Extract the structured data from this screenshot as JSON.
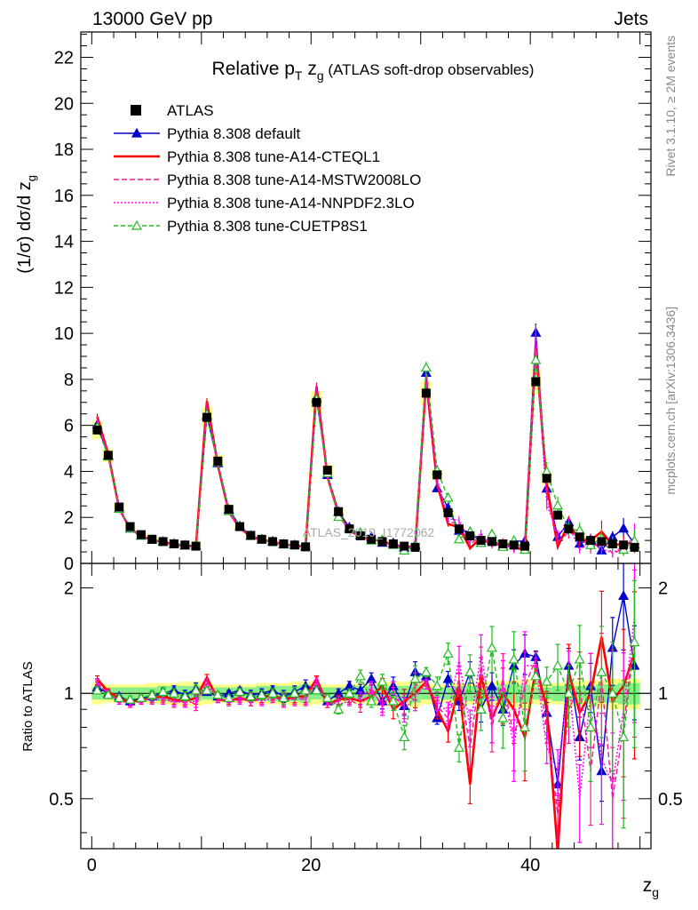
{
  "header": {
    "left": "13000 GeV pp",
    "right": "Jets"
  },
  "side_notes": {
    "rivet": "Rivet 3.1.10, ≥ 2M events",
    "mcplots": "mcplots.cern.ch [arXiv:1306.3436]"
  },
  "watermark": "ATLAS_2019_I1772062",
  "chart_data": {
    "type": "line",
    "title": {
      "main": "Relative p",
      "sub_T": "T",
      "mid": " z",
      "sub_g": "g",
      "rest": " (ATLAS soft-drop observables)"
    },
    "ylabel": "(1/σ) dσ/d z",
    "ylabel_sub": "g",
    "xlabel": "z",
    "xlabel_sub": "g",
    "ratio_ylabel": "Ratio to ATLAS",
    "xlim": [
      -1,
      51
    ],
    "ylim": [
      0,
      23.1
    ],
    "ratio_ylim": [
      0.36,
      2.35
    ],
    "x_ticks": [
      "0",
      "20",
      "40"
    ],
    "y_ticks": [
      "0",
      "2",
      "4",
      "6",
      "8",
      "10",
      "12",
      "14",
      "16",
      "18",
      "20",
      "22"
    ],
    "ratio_ticks": [
      "0.5",
      "1",
      "2"
    ],
    "x": [
      0.5,
      1.5,
      2.5,
      3.5,
      4.5,
      5.5,
      6.5,
      7.5,
      8.5,
      9.5,
      10.5,
      11.5,
      12.5,
      13.5,
      14.5,
      15.5,
      16.5,
      17.5,
      18.5,
      19.5,
      20.5,
      21.5,
      22.5,
      23.5,
      24.5,
      25.5,
      26.5,
      27.5,
      28.5,
      29.5,
      30.5,
      31.5,
      32.5,
      33.5,
      34.5,
      35.5,
      36.5,
      37.5,
      38.5,
      39.5,
      40.5,
      41.5,
      42.5,
      43.5,
      44.5,
      45.5,
      46.5,
      47.5,
      48.5,
      49.5
    ],
    "data": {
      "name": "ATLAS",
      "values": [
        5.8,
        4.7,
        2.45,
        1.6,
        1.25,
        1.05,
        0.95,
        0.85,
        0.8,
        0.75,
        6.35,
        4.45,
        2.35,
        1.6,
        1.22,
        1.05,
        0.95,
        0.85,
        0.8,
        0.72,
        7.0,
        4.05,
        2.25,
        1.5,
        1.2,
        1.05,
        0.95,
        0.85,
        0.75,
        0.7,
        7.4,
        3.85,
        2.2,
        1.5,
        1.2,
        1.0,
        0.95,
        0.85,
        0.8,
        0.75,
        7.9,
        3.7,
        2.1,
        1.5,
        1.15,
        1.0,
        0.95,
        0.85,
        0.8,
        0.7
      ],
      "band_inner": [
        0.04,
        0.04,
        0.04,
        0.04,
        0.04,
        0.04,
        0.05,
        0.05,
        0.05,
        0.05,
        0.04,
        0.04,
        0.04,
        0.04,
        0.04,
        0.05,
        0.05,
        0.05,
        0.05,
        0.06,
        0.04,
        0.04,
        0.04,
        0.04,
        0.05,
        0.05,
        0.05,
        0.05,
        0.05,
        0.06,
        0.04,
        0.04,
        0.04,
        0.05,
        0.05,
        0.05,
        0.05,
        0.06,
        0.06,
        0.06,
        0.04,
        0.04,
        0.05,
        0.05,
        0.05,
        0.05,
        0.06,
        0.06,
        0.07,
        0.07
      ],
      "band_outer": [
        0.07,
        0.06,
        0.06,
        0.06,
        0.06,
        0.07,
        0.07,
        0.07,
        0.08,
        0.08,
        0.07,
        0.06,
        0.06,
        0.06,
        0.06,
        0.07,
        0.07,
        0.07,
        0.08,
        0.08,
        0.07,
        0.06,
        0.06,
        0.06,
        0.07,
        0.07,
        0.08,
        0.08,
        0.08,
        0.09,
        0.07,
        0.06,
        0.06,
        0.07,
        0.07,
        0.08,
        0.08,
        0.09,
        0.09,
        0.1,
        0.07,
        0.07,
        0.07,
        0.08,
        0.08,
        0.09,
        0.09,
        0.1,
        0.1,
        0.1
      ]
    },
    "series": [
      {
        "name": "Pythia 8.308 default",
        "color": "#0000cc",
        "dash": "",
        "marker": "triangle-filled",
        "ratio": [
          1.04,
          1.0,
          0.98,
          0.95,
          0.97,
          0.98,
          1.0,
          1.02,
          0.99,
          1.03,
          1.01,
          0.98,
          1.0,
          1.02,
          0.99,
          1.0,
          1.02,
          0.98,
          1.01,
          1.05,
          1.03,
          0.95,
          1.0,
          1.05,
          1.02,
          1.1,
          0.95,
          1.05,
          0.92,
          1.15,
          1.12,
          0.85,
          1.1,
          0.95,
          1.15,
          0.9,
          1.05,
          0.9,
          1.2,
          1.3,
          1.27,
          0.88,
          0.55,
          1.2,
          0.75,
          1.05,
          0.6,
          1.35,
          1.9,
          1.2
        ],
        "err": [
          0.02,
          0.02,
          0.02,
          0.02,
          0.02,
          0.03,
          0.03,
          0.03,
          0.03,
          0.04,
          0.02,
          0.02,
          0.02,
          0.02,
          0.03,
          0.03,
          0.03,
          0.04,
          0.04,
          0.04,
          0.02,
          0.02,
          0.03,
          0.03,
          0.04,
          0.04,
          0.05,
          0.06,
          0.06,
          0.07,
          0.03,
          0.04,
          0.05,
          0.06,
          0.07,
          0.08,
          0.09,
          0.1,
          0.11,
          0.13,
          0.04,
          0.07,
          0.1,
          0.12,
          0.14,
          0.16,
          0.18,
          0.22,
          0.3,
          0.3
        ]
      },
      {
        "name": "Pythia 8.308 tune-A14-CTEQL1",
        "color": "#ff0000",
        "dash": "",
        "marker": "none",
        "ratio": [
          1.1,
          1.01,
          0.97,
          0.94,
          0.96,
          0.97,
          0.98,
          0.96,
          0.95,
          0.97,
          1.11,
          0.96,
          0.95,
          0.97,
          0.95,
          0.97,
          0.99,
          0.96,
          0.98,
          0.98,
          1.1,
          0.93,
          0.96,
          0.97,
          0.95,
          0.98,
          1.05,
          0.9,
          0.95,
          1.0,
          1.08,
          0.9,
          0.78,
          1.05,
          0.55,
          1.12,
          0.85,
          1.0,
          0.9,
          0.75,
          1.18,
          0.92,
          0.35,
          1.15,
          0.88,
          1.0,
          1.45,
          0.95,
          1.05,
          1.3
        ],
        "err": [
          0.02,
          0.02,
          0.02,
          0.02,
          0.02,
          0.03,
          0.03,
          0.03,
          0.03,
          0.04,
          0.02,
          0.02,
          0.02,
          0.02,
          0.03,
          0.03,
          0.03,
          0.04,
          0.04,
          0.04,
          0.02,
          0.02,
          0.03,
          0.03,
          0.04,
          0.04,
          0.05,
          0.06,
          0.08,
          0.09,
          0.03,
          0.06,
          0.07,
          0.09,
          0.12,
          0.13,
          0.15,
          0.18,
          0.2,
          0.25,
          0.05,
          0.1,
          0.15,
          0.2,
          0.25,
          0.3,
          0.35,
          0.4,
          0.45,
          0.5
        ]
      },
      {
        "name": "Pythia 8.308 tune-A14-MSTW2008LO",
        "color": "#ff1493",
        "dash": "6 3",
        "marker": "none",
        "ratio": [
          1.08,
          0.99,
          0.96,
          0.93,
          0.95,
          0.97,
          0.97,
          0.94,
          0.96,
          0.93,
          1.08,
          0.97,
          0.94,
          0.96,
          0.95,
          0.96,
          0.98,
          0.95,
          0.97,
          0.96,
          1.09,
          0.93,
          0.95,
          0.96,
          0.92,
          1.02,
          0.93,
          0.98,
          0.92,
          1.05,
          1.1,
          0.92,
          0.85,
          1.1,
          0.7,
          1.2,
          0.8,
          1.1,
          0.75,
          1.05,
          1.25,
          0.8,
          0.45,
          0.9,
          1.05,
          0.6,
          1.1,
          0.5,
          0.8,
          1.5
        ],
        "err": [
          0.02,
          0.02,
          0.02,
          0.02,
          0.02,
          0.03,
          0.03,
          0.03,
          0.03,
          0.04,
          0.02,
          0.02,
          0.02,
          0.02,
          0.03,
          0.03,
          0.03,
          0.04,
          0.04,
          0.04,
          0.02,
          0.02,
          0.03,
          0.03,
          0.04,
          0.04,
          0.05,
          0.06,
          0.08,
          0.09,
          0.03,
          0.06,
          0.07,
          0.09,
          0.12,
          0.13,
          0.15,
          0.18,
          0.2,
          0.25,
          0.05,
          0.1,
          0.15,
          0.2,
          0.25,
          0.3,
          0.35,
          0.4,
          0.45,
          0.5
        ]
      },
      {
        "name": "Pythia 8.308 tune-A14-NNPDF2.3LO",
        "color": "#ff00ff",
        "dash": "2 2",
        "marker": "none",
        "ratio": [
          1.07,
          1.0,
          0.95,
          0.94,
          0.96,
          0.96,
          0.96,
          0.95,
          0.94,
          0.95,
          1.06,
          0.96,
          0.96,
          0.95,
          0.97,
          0.95,
          0.97,
          0.96,
          0.96,
          0.97,
          1.07,
          0.95,
          0.93,
          0.95,
          0.97,
          1.04,
          0.91,
          1.02,
          0.9,
          0.98,
          1.06,
          0.95,
          0.88,
          1.25,
          0.8,
          1.3,
          0.85,
          1.05,
          0.7,
          1.2,
          1.2,
          0.7,
          0.6,
          1.1,
          0.5,
          1.0,
          0.65,
          0.55,
          0.9,
          1.65
        ],
        "err": [
          0.02,
          0.02,
          0.02,
          0.02,
          0.02,
          0.03,
          0.03,
          0.03,
          0.03,
          0.04,
          0.02,
          0.02,
          0.02,
          0.02,
          0.03,
          0.03,
          0.03,
          0.04,
          0.04,
          0.04,
          0.02,
          0.02,
          0.03,
          0.03,
          0.04,
          0.04,
          0.05,
          0.06,
          0.08,
          0.09,
          0.03,
          0.06,
          0.07,
          0.09,
          0.12,
          0.13,
          0.15,
          0.18,
          0.2,
          0.25,
          0.05,
          0.1,
          0.15,
          0.2,
          0.25,
          0.3,
          0.35,
          0.4,
          0.45,
          0.5
        ]
      },
      {
        "name": "Pythia 8.308 tune-CUETP8S1",
        "color": "#22bb22",
        "dash": "5 3",
        "marker": "triangle-open",
        "ratio": [
          1.02,
          0.99,
          0.97,
          0.96,
          0.97,
          0.99,
          1.01,
          1.0,
          0.98,
          1.02,
          1.02,
          0.99,
          0.97,
          1.01,
          0.98,
          0.99,
          1.0,
          0.97,
          1.0,
          1.02,
          1.02,
          0.97,
          0.9,
          1.0,
          1.12,
          0.95,
          1.08,
          0.95,
          0.75,
          1.1,
          1.15,
          1.05,
          1.3,
          0.7,
          1.15,
          0.9,
          1.35,
          0.85,
          1.25,
          0.8,
          1.12,
          1.08,
          1.2,
          1.0,
          1.25,
          0.8,
          1.15,
          1.0,
          0.75,
          1.4
        ],
        "err": [
          0.02,
          0.02,
          0.02,
          0.02,
          0.02,
          0.03,
          0.03,
          0.03,
          0.03,
          0.04,
          0.02,
          0.02,
          0.02,
          0.02,
          0.03,
          0.03,
          0.03,
          0.04,
          0.04,
          0.04,
          0.02,
          0.02,
          0.03,
          0.03,
          0.04,
          0.04,
          0.05,
          0.06,
          0.08,
          0.09,
          0.03,
          0.06,
          0.07,
          0.09,
          0.12,
          0.13,
          0.15,
          0.18,
          0.2,
          0.25,
          0.05,
          0.1,
          0.15,
          0.2,
          0.25,
          0.3,
          0.35,
          0.4,
          0.45,
          0.5
        ]
      }
    ]
  }
}
